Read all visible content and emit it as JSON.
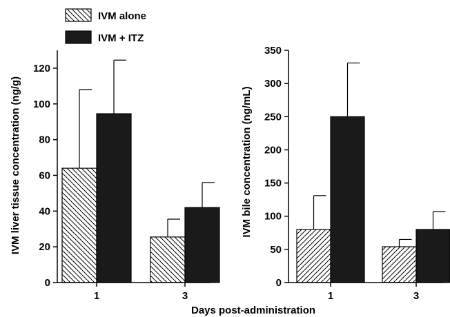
{
  "legend": [
    {
      "label": "IVM alone",
      "pattern": "hatch"
    },
    {
      "label": "IVM + ITZ",
      "pattern": "solid"
    }
  ],
  "shared_xlabel": "Days post-administration",
  "colors": {
    "solid": "#1a1a1a",
    "hatch_stroke": "#000000",
    "background": "#ffffff"
  },
  "chart_data": [
    {
      "type": "bar",
      "ylabel": "IVM liver tissue concentration (ng/g)",
      "xlabel": "Days post-administration",
      "categories": [
        "1",
        "3"
      ],
      "ylim": [
        0,
        130
      ],
      "yticks": [
        0,
        20,
        40,
        60,
        80,
        100,
        120
      ],
      "hatch": "back-diagonal",
      "series": [
        {
          "name": "IVM alone",
          "values": [
            64,
            25.5
          ],
          "errors": [
            44,
            10
          ]
        },
        {
          "name": "IVM + ITZ",
          "values": [
            94.5,
            42
          ],
          "errors": [
            30,
            14
          ]
        }
      ]
    },
    {
      "type": "bar",
      "ylabel": "IVM bile concentration (ng/mL)",
      "xlabel": "Days post-administration",
      "categories": [
        "1",
        "3"
      ],
      "ylim": [
        0,
        350
      ],
      "yticks": [
        0,
        50,
        100,
        150,
        200,
        250,
        300,
        350
      ],
      "hatch": "forward-diagonal",
      "series": [
        {
          "name": "IVM alone",
          "values": [
            80,
            54
          ],
          "errors": [
            51,
            11
          ]
        },
        {
          "name": "IVM + ITZ",
          "values": [
            250,
            80
          ],
          "errors": [
            81,
            27
          ]
        }
      ]
    }
  ]
}
